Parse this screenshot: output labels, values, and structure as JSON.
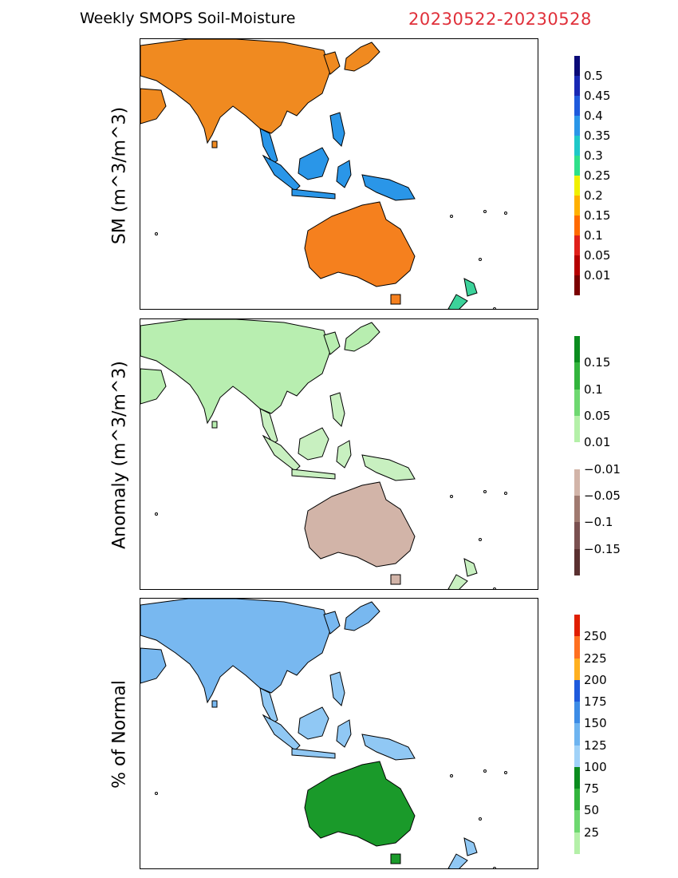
{
  "header": {
    "title": "Weekly SMOPS Soil-Moisture",
    "date_range": "20230522-20230528"
  },
  "panels": [
    {
      "ylabel": "SM (m^3/m^3)",
      "colors": [
        "#7a0000",
        "#b50000",
        "#e0201a",
        "#ff6a00",
        "#ffb000",
        "#f0f000",
        "#2fe08a",
        "#1ec8c8",
        "#2a96e8",
        "#1e5adc",
        "#1828b4",
        "#0a0a78"
      ],
      "ticks": [
        "0.01",
        "0.05",
        "0.1",
        "0.15",
        "0.2",
        "0.25",
        "0.3",
        "0.35",
        "0.4",
        "0.45",
        "0.5"
      ],
      "fills": {
        "asia": "#f08a20",
        "seasia": "#2a96e8",
        "aus": "#f5801e",
        "nz": "#3cd29a"
      }
    },
    {
      "ylabel": "Anomaly (m^3/m^3)",
      "colors": [
        "#5a3030",
        "#7a5050",
        "#a07a70",
        "#d2b4a8",
        "#ffffff",
        "#b4f0a8",
        "#6ed870",
        "#32b43c",
        "#0a8c1e"
      ],
      "ticks": [
        "−0.15",
        "−0.1",
        "−0.05",
        "−0.01",
        "0.01",
        "0.05",
        "0.1",
        "0.15"
      ],
      "fills": {
        "asia": "#b8eeb0",
        "seasia": "#c8f0c0",
        "aus": "#d2b4a8",
        "nz": "#c8f0c0"
      }
    },
    {
      "ylabel": "% of Normal",
      "colors": [
        "#b4f0a8",
        "#6ed870",
        "#32b43c",
        "#0a8c1e",
        "#a0d2f8",
        "#6eb4f0",
        "#3c8ce6",
        "#1e5adc",
        "#ffb020",
        "#ff7020",
        "#e01e00"
      ],
      "ticks": [
        "25",
        "50",
        "75",
        "100",
        "125",
        "150",
        "175",
        "200",
        "225",
        "250"
      ],
      "fills": {
        "asia": "#78b8f0",
        "seasia": "#90c8f4",
        "aus": "#1a9a2a",
        "nz": "#90c8f4"
      }
    }
  ]
}
